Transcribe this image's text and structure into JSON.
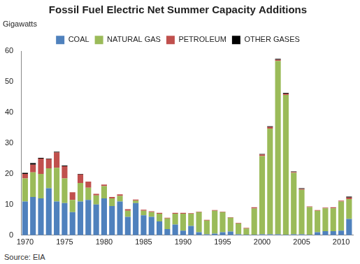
{
  "chart_data": {
    "type": "bar",
    "title": "Fossil Fuel Electric Net Summer Capacity Additions",
    "y_label": "Gigawatts",
    "source": "Source: EIA",
    "stacked": true,
    "grid": false,
    "legend": "top",
    "categories": [
      "1970",
      null,
      null,
      null,
      null,
      "1975",
      null,
      null,
      null,
      null,
      "1980",
      null,
      null,
      null,
      null,
      "1985",
      null,
      null,
      null,
      null,
      "1990",
      null,
      null,
      null,
      null,
      "1995",
      null,
      null,
      null,
      null,
      "2000",
      null,
      null,
      null,
      null,
      "2005",
      null,
      null,
      null,
      null,
      "2010",
      null
    ],
    "series": [
      {
        "name": "COAL",
        "color": "#4f81bd",
        "values": [
          11,
          12.5,
          12,
          15.3,
          11,
          10.5,
          7.5,
          11,
          11.5,
          10,
          12,
          9.5,
          11,
          6,
          10.5,
          6.5,
          6,
          4.5,
          2,
          3.5,
          1.5,
          3,
          1,
          0.3,
          0.5,
          1,
          1.2,
          0.3,
          0.2,
          0.2,
          0.3,
          0.3,
          0.3,
          0.2,
          0.3,
          0.3,
          0.2,
          1,
          1.3,
          1.3,
          1.5,
          5.3
        ]
      },
      {
        "name": "NATURAL GAS",
        "color": "#9bbb59",
        "values": [
          7.5,
          8,
          8,
          6.5,
          11,
          8,
          4,
          6,
          4,
          3,
          4,
          2.5,
          1.8,
          2,
          0.8,
          1.5,
          1.5,
          2.5,
          3.5,
          3.5,
          5.5,
          4,
          6.5,
          4.5,
          7.5,
          6.5,
          4.5,
          3.5,
          2,
          8.5,
          25.5,
          34.5,
          56.5,
          45.5,
          20,
          14.5,
          9,
          7,
          7.5,
          7.5,
          9.5,
          6.5
        ]
      },
      {
        "name": "PETROLEUM",
        "color": "#c0504d",
        "values": [
          1.5,
          2.5,
          5,
          3,
          5,
          4,
          2.5,
          2.8,
          2,
          0.5,
          0.5,
          0.5,
          0.5,
          0.5,
          0.3,
          0.3,
          0.3,
          0.3,
          0.2,
          0.3,
          0.3,
          0.2,
          0.2,
          0.2,
          0.2,
          0.2,
          0.2,
          0.2,
          0.2,
          0.4,
          0.5,
          0.5,
          0.4,
          0.4,
          0.3,
          0.3,
          0.2,
          0.2,
          0.2,
          0.3,
          0.3,
          0.5
        ]
      },
      {
        "name": "OTHER GASES",
        "color": "#000000",
        "values": [
          0.3,
          0.5,
          0.2,
          0.2,
          0.2,
          0.2,
          0,
          0.2,
          0,
          0,
          0,
          0,
          0,
          0,
          0,
          0,
          0,
          0,
          0,
          0,
          0,
          0,
          0,
          0,
          0,
          0,
          0,
          0,
          0,
          0,
          0.2,
          0.2,
          0.3,
          0.3,
          0.2,
          0.2,
          0,
          0,
          0,
          0,
          0,
          0.3
        ]
      }
    ],
    "ylim": [
      0,
      60
    ],
    "yticks": [
      0,
      10,
      20,
      30,
      40,
      50,
      60
    ]
  }
}
